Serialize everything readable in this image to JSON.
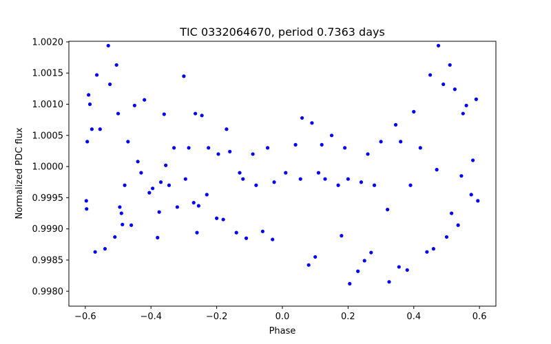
{
  "chart_data": {
    "type": "scatter",
    "title": "TIC 0332064670, period 0.7363 days",
    "xlabel": "Phase",
    "ylabel": "Normalized PDC flux",
    "xlim": [
      -0.65,
      0.65
    ],
    "ylim": [
      0.99776,
      1.00201
    ],
    "x_ticks": [
      -0.6,
      -0.4,
      -0.2,
      0.0,
      0.2,
      0.4,
      0.6
    ],
    "x_tick_labels": [
      "−0.6",
      "−0.4",
      "−0.2",
      "0.0",
      "0.2",
      "0.4",
      "0.6"
    ],
    "y_ticks": [
      0.998,
      0.9985,
      0.999,
      0.9995,
      1.0,
      1.0005,
      1.001,
      1.0015,
      1.002
    ],
    "y_tick_labels": [
      "0.9980",
      "0.9985",
      "0.9990",
      "0.9995",
      "1.0000",
      "1.0005",
      "1.0010",
      "1.0015",
      "1.0020"
    ],
    "grid": false,
    "marker_color": "#0000ff",
    "series": [
      {
        "x": [
          -0.597,
          -0.596,
          -0.594,
          -0.59,
          -0.586,
          -0.58,
          -0.57,
          -0.565,
          -0.555,
          -0.54,
          -0.53,
          -0.525,
          -0.51,
          -0.505,
          -0.5,
          -0.495,
          -0.49,
          -0.487,
          -0.48,
          -0.47,
          -0.46,
          -0.45,
          -0.44,
          -0.43,
          -0.42,
          -0.405,
          -0.395,
          -0.38,
          -0.375,
          -0.37,
          -0.36,
          -0.355,
          -0.345,
          -0.33,
          -0.32,
          -0.3,
          -0.295,
          -0.285,
          -0.27,
          -0.265,
          -0.26,
          -0.255,
          -0.245,
          -0.23,
          -0.225,
          -0.2,
          -0.195,
          -0.18,
          -0.17,
          -0.16,
          -0.14,
          -0.13,
          -0.12,
          -0.11,
          -0.09,
          -0.08,
          -0.06,
          -0.045,
          -0.03,
          -0.025,
          0.01,
          0.04,
          0.055,
          0.06,
          0.08,
          0.09,
          0.1,
          0.11,
          0.12,
          0.13,
          0.15,
          0.17,
          0.18,
          0.19,
          0.2,
          0.205,
          0.23,
          0.24,
          0.25,
          0.26,
          0.27,
          0.28,
          0.3,
          0.32,
          0.325,
          0.345,
          0.355,
          0.36,
          0.38,
          0.39,
          0.4,
          0.42,
          0.44,
          0.45,
          0.46,
          0.47,
          0.475,
          0.49,
          0.5,
          0.51,
          0.515,
          0.525,
          0.535,
          0.545,
          0.55,
          0.56,
          0.575,
          0.58,
          0.59,
          0.595
        ],
        "y": [
          0.99945,
          0.99932,
          1.0004,
          1.00115,
          1.001,
          1.0006,
          0.99863,
          1.00147,
          1.0006,
          0.99868,
          1.00194,
          1.00132,
          0.99887,
          1.00163,
          1.00085,
          0.99935,
          0.99925,
          0.99907,
          0.9997,
          1.0004,
          0.99906,
          1.00098,
          1.00008,
          0.9999,
          1.00107,
          0.99958,
          0.99965,
          0.99886,
          0.99927,
          0.99975,
          1.00084,
          1.00002,
          0.9997,
          1.0003,
          0.99935,
          1.00145,
          0.9998,
          1.0003,
          0.99942,
          1.00085,
          0.99894,
          0.99937,
          1.00082,
          0.99955,
          1.0003,
          0.99917,
          1.0002,
          0.99915,
          1.0006,
          1.00024,
          0.99894,
          0.9999,
          0.9998,
          0.99885,
          1.0002,
          0.9997,
          0.99896,
          1.0003,
          0.99883,
          0.99975,
          0.9999,
          1.00035,
          0.9998,
          1.00078,
          0.99842,
          1.0007,
          0.99855,
          0.9999,
          1.00035,
          0.9998,
          1.0005,
          0.9997,
          0.99889,
          1.0003,
          0.9998,
          0.99812,
          0.99832,
          0.99975,
          0.99849,
          1.0002,
          0.99862,
          0.9997,
          1.0004,
          0.99931,
          0.99815,
          1.00067,
          0.99839,
          1.0004,
          0.99834,
          0.9997,
          1.00088,
          1.0003,
          0.99863,
          1.00147,
          0.99868,
          0.99995,
          1.00194,
          1.00132,
          0.99887,
          1.00163,
          0.99925,
          1.00124,
          0.99906,
          0.99985,
          1.00085,
          1.00098,
          0.99955,
          1.0001,
          1.00108,
          0.99945
        ]
      }
    ]
  }
}
